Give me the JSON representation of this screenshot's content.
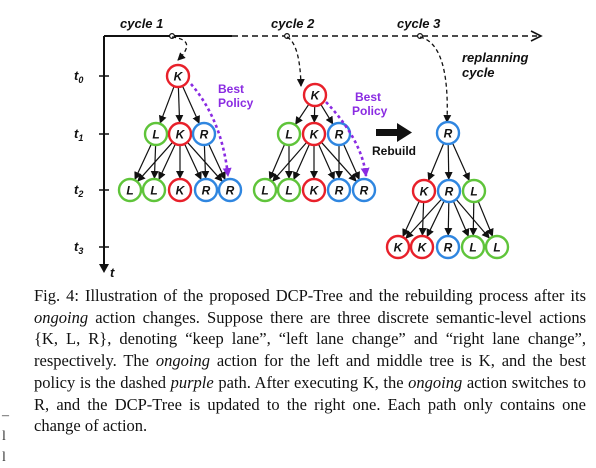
{
  "figure": {
    "cycles": [
      "cycle 1",
      "cycle 2",
      "cycle 3"
    ],
    "replanning": [
      "replanning",
      "cycle"
    ],
    "time_axis_label": "t",
    "time_labels": [
      {
        "sym": "t",
        "sub": "0"
      },
      {
        "sym": "t",
        "sub": "1"
      },
      {
        "sym": "t",
        "sub": "2"
      },
      {
        "sym": "t",
        "sub": "3"
      }
    ],
    "best_policy": [
      "Best",
      "Policy"
    ],
    "rebuild_label": "Rebuild",
    "colors": {
      "K": "#e8202a",
      "L": "#5fc43a",
      "R": "#2f86e0",
      "policy": "#8a2be2"
    },
    "left_tree": {
      "root": "K",
      "level1": [
        "L",
        "K",
        "R"
      ],
      "level2": [
        "L",
        "L",
        "K",
        "R",
        "R"
      ]
    },
    "middle_tree": {
      "root": "K",
      "level1": [
        "L",
        "K",
        "R"
      ],
      "level2": [
        "L",
        "L",
        "K",
        "R",
        "R"
      ]
    },
    "right_tree": {
      "root": "R",
      "level1": [
        "K",
        "R",
        "L"
      ],
      "level2": [
        "K",
        "K",
        "R",
        "L",
        "L"
      ]
    }
  },
  "caption": {
    "p1": "Fig. 4: Illustration of the proposed DCP-Tree and the rebuilding process after its ",
    "e1": "ongoing",
    "p2": " action changes. Suppose there are three discrete semantic-level actions {K, L, R}, denoting “keep lane”, “left lane change” and “right lane change”, respectively. The ",
    "e2": "ongoing",
    "p3": " action for the left and middle tree is K, and the best policy is the dashed ",
    "e3": "purple",
    "p4": " path. After executing K, the ",
    "e4": "ongoing",
    "p5": " action switches to R, and the DCP-Tree is updated to the right one. Each path only contains one change of action."
  },
  "margin_marks": [
    "–",
    "l",
    "l"
  ]
}
